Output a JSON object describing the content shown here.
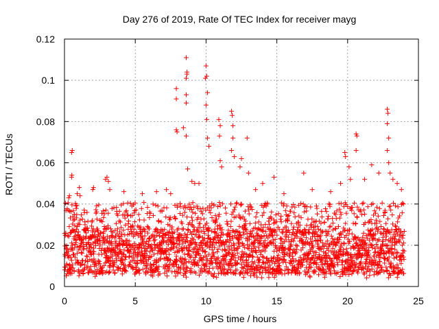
{
  "colors": {
    "series": "#ff0000",
    "axis": "#000000",
    "grid": "#a0a0a0",
    "background": "#ffffff"
  },
  "chart_data": {
    "type": "scatter",
    "title": "Day 276 of 2019, Rate Of TEC Index for receiver mayg",
    "xlabel": "GPS time / hours",
    "ylabel": "ROTI / TECUs",
    "xlim": [
      0,
      25
    ],
    "ylim": [
      0,
      0.12
    ],
    "grid": true,
    "marker": "plus",
    "x_tick_labels": [
      "0",
      "5",
      "10",
      "15",
      "20",
      "25"
    ],
    "y_tick_labels": [
      "0",
      "0.02",
      "0.04",
      "0.06",
      "0.08",
      "0.1",
      "0.12"
    ],
    "baseline_band": {
      "x_start": 0.0,
      "x_end": 24.0,
      "typical_min": 0.006,
      "typical_max": 0.028,
      "upper_envelope": 0.045
    },
    "series": [
      {
        "name": "mayg",
        "points": [
          [
            0.3,
            0.043
          ],
          [
            0.35,
            0.044
          ],
          [
            0.5,
            0.053
          ],
          [
            0.52,
            0.054
          ],
          [
            0.5,
            0.065
          ],
          [
            0.55,
            0.066
          ],
          [
            0.6,
            0.034
          ],
          [
            0.7,
            0.035
          ],
          [
            0.9,
            0.045
          ],
          [
            1.05,
            0.048
          ],
          [
            1.1,
            0.044
          ],
          [
            2.0,
            0.047
          ],
          [
            2.05,
            0.048
          ],
          [
            2.9,
            0.052
          ],
          [
            3.0,
            0.053
          ],
          [
            3.1,
            0.051
          ],
          [
            3.2,
            0.047
          ],
          [
            4.2,
            0.046
          ],
          [
            5.5,
            0.045
          ],
          [
            6.5,
            0.046
          ],
          [
            7.2,
            0.047
          ],
          [
            7.5,
            0.045
          ],
          [
            7.9,
            0.096
          ],
          [
            7.9,
            0.091
          ],
          [
            7.9,
            0.076
          ],
          [
            7.95,
            0.075
          ],
          [
            8.4,
            0.077
          ],
          [
            8.6,
            0.073
          ],
          [
            8.6,
            0.089
          ],
          [
            8.6,
            0.093
          ],
          [
            8.6,
            0.101
          ],
          [
            8.65,
            0.103
          ],
          [
            8.65,
            0.104
          ],
          [
            8.6,
            0.111
          ],
          [
            8.7,
            0.057
          ],
          [
            9.0,
            0.051
          ],
          [
            9.2,
            0.05
          ],
          [
            9.5,
            0.05
          ],
          [
            10.0,
            0.107
          ],
          [
            10.05,
            0.102
          ],
          [
            9.95,
            0.101
          ],
          [
            10.1,
            0.094
          ],
          [
            10.0,
            0.088
          ],
          [
            10.05,
            0.081
          ],
          [
            10.1,
            0.072
          ],
          [
            10.2,
            0.068
          ],
          [
            10.9,
            0.081
          ],
          [
            11.0,
            0.078
          ],
          [
            10.95,
            0.073
          ],
          [
            11.0,
            0.061
          ],
          [
            11.1,
            0.058
          ],
          [
            11.8,
            0.085
          ],
          [
            11.85,
            0.083
          ],
          [
            11.9,
            0.078
          ],
          [
            11.9,
            0.072
          ],
          [
            11.8,
            0.066
          ],
          [
            12.0,
            0.063
          ],
          [
            12.4,
            0.058
          ],
          [
            12.5,
            0.062
          ],
          [
            12.9,
            0.072
          ],
          [
            13.0,
            0.055
          ],
          [
            13.5,
            0.047
          ],
          [
            14.0,
            0.05
          ],
          [
            14.8,
            0.053
          ],
          [
            15.5,
            0.045
          ],
          [
            16.9,
            0.055
          ],
          [
            17.5,
            0.047
          ],
          [
            18.8,
            0.046
          ],
          [
            19.5,
            0.05
          ],
          [
            19.8,
            0.065
          ],
          [
            19.85,
            0.063
          ],
          [
            20.1,
            0.058
          ],
          [
            20.2,
            0.052
          ],
          [
            20.6,
            0.074
          ],
          [
            20.65,
            0.073
          ],
          [
            20.6,
            0.066
          ],
          [
            21.2,
            0.052
          ],
          [
            21.7,
            0.059
          ],
          [
            22.2,
            0.055
          ],
          [
            22.8,
            0.086
          ],
          [
            22.85,
            0.084
          ],
          [
            22.8,
            0.079
          ],
          [
            22.9,
            0.072
          ],
          [
            22.8,
            0.066
          ],
          [
            22.9,
            0.06
          ],
          [
            23.0,
            0.055
          ],
          [
            23.2,
            0.052
          ],
          [
            23.5,
            0.05
          ],
          [
            23.8,
            0.047
          ]
        ]
      }
    ]
  }
}
